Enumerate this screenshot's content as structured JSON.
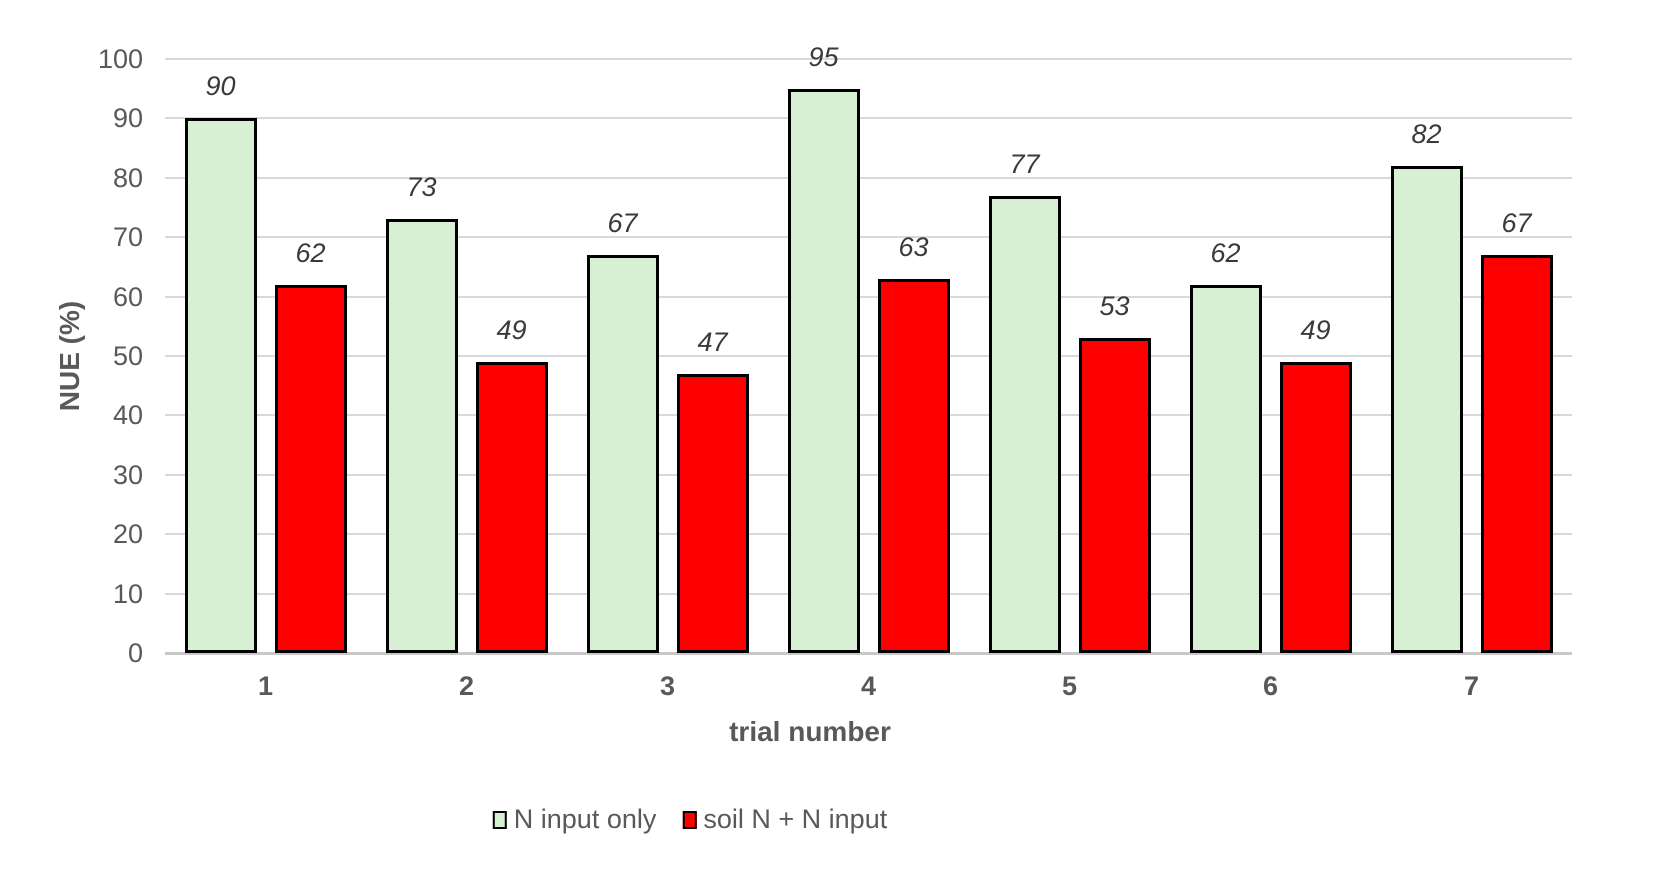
{
  "chart_data": {
    "type": "bar",
    "title": "",
    "xlabel": "trial number",
    "ylabel": "NUE (%)",
    "categories": [
      "1",
      "2",
      "3",
      "4",
      "5",
      "6",
      "7"
    ],
    "series": [
      {
        "name": "N input only",
        "color": "#d7efd2",
        "values": [
          90,
          73,
          67,
          95,
          77,
          62,
          82
        ]
      },
      {
        "name": "soil N + N input",
        "color": "#ff0000",
        "values": [
          62,
          49,
          47,
          63,
          53,
          49,
          67
        ]
      }
    ],
    "ylim": [
      0,
      100
    ],
    "ytick_step": 10,
    "yticks": [
      "0",
      "10",
      "20",
      "30",
      "40",
      "50",
      "60",
      "70",
      "80",
      "90",
      "100"
    ],
    "grid": true,
    "data_labels": true,
    "data_label_style": "italic",
    "legend_position": "bottom",
    "style": {
      "background": "#ffffff",
      "gridline_color": "#d9d9d9",
      "axis_line_color": "#c8c8c8",
      "bar_border_color": "#000000",
      "tick_label_color": "#595959",
      "category_label_color": "#595959",
      "axis_title_color": "#595959",
      "data_label_color": "#3a3a3a",
      "legend_text_color": "#595959"
    }
  }
}
